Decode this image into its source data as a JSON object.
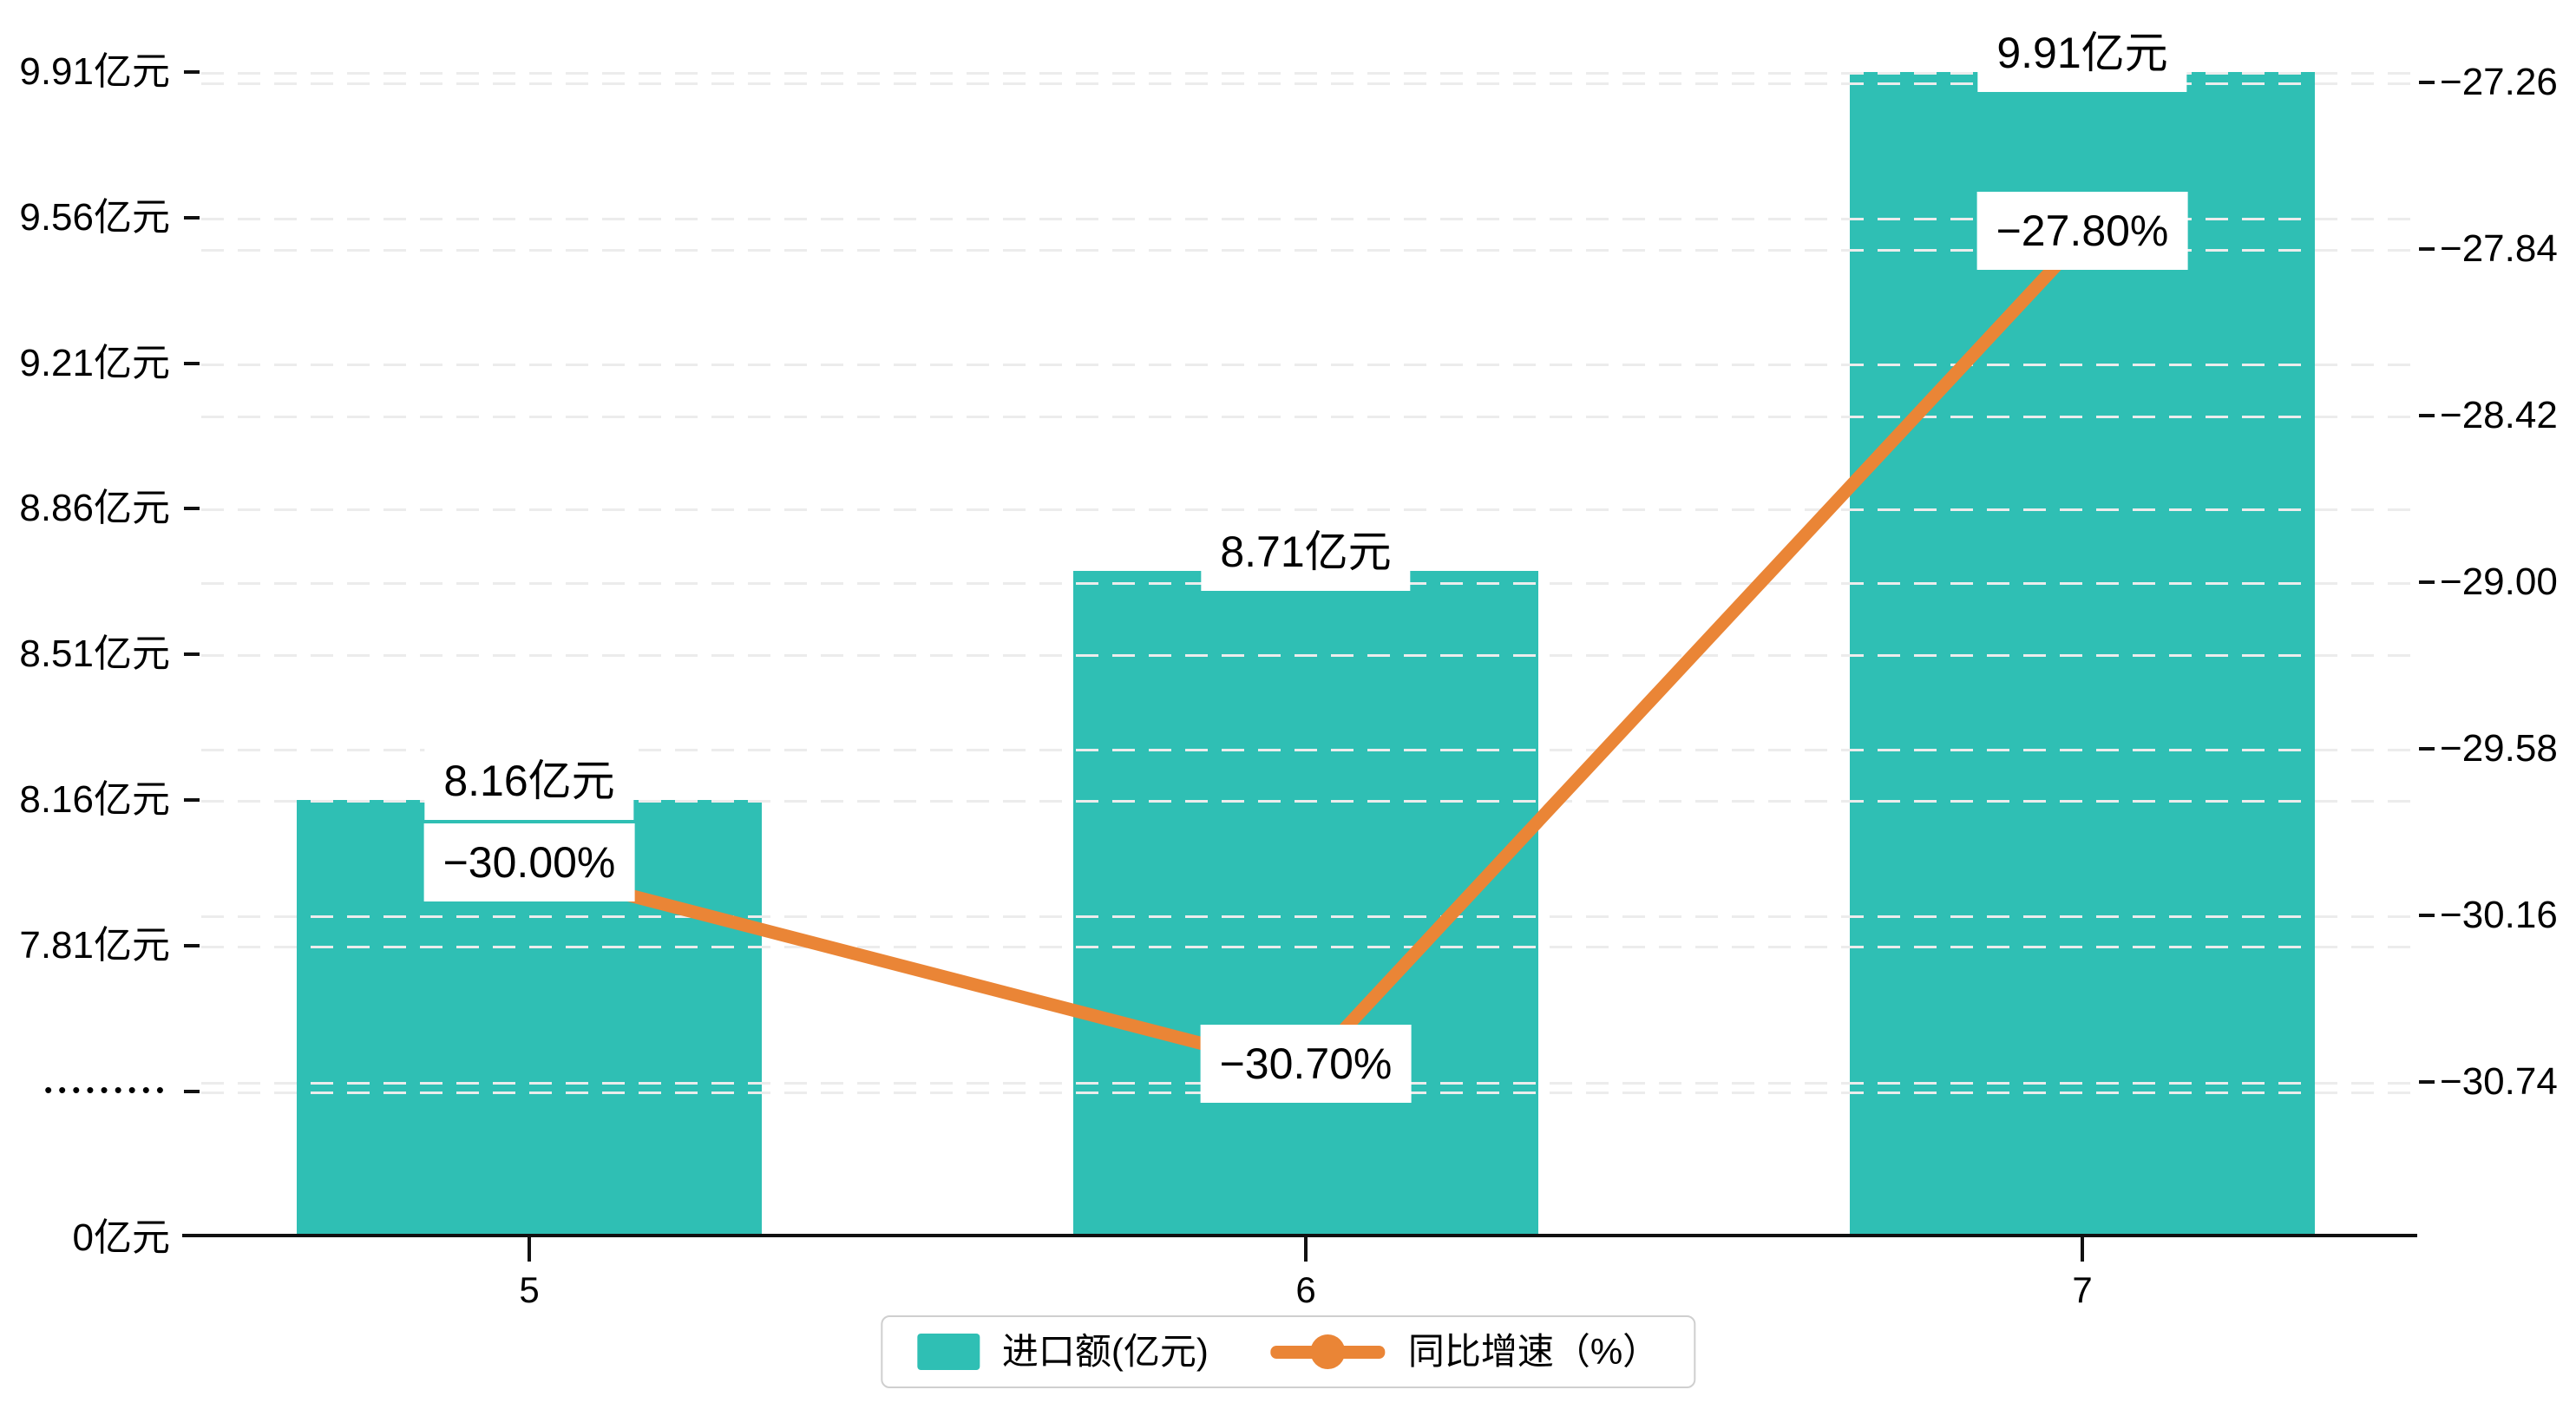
{
  "chart_data": {
    "type": "bar",
    "subtype": "bar-line-combo",
    "categories": [
      "5",
      "6",
      "7"
    ],
    "series": [
      {
        "name": "进口额(亿元)",
        "type": "bar",
        "values": [
          8.16,
          8.71,
          9.91
        ],
        "point_labels": [
          "8.16亿元",
          "8.71亿元",
          "9.91亿元"
        ],
        "color": "#2FBFB4"
      },
      {
        "name": "同比增速（%）",
        "type": "line",
        "values": [
          -30.0,
          -30.7,
          -27.8
        ],
        "point_labels": [
          "−30.00%",
          "−30.70%",
          "−27.80%"
        ],
        "color": "#EA8536"
      }
    ],
    "title": "",
    "xlabel": "",
    "ylabel_left": "亿元",
    "ylabel_right": "%",
    "left_axis": {
      "tick_labels": [
        "9.91亿元",
        "9.56亿元",
        "9.21亿元",
        "8.86亿元",
        "8.51亿元",
        "8.16亿元",
        "7.81亿元"
      ],
      "break_marker": "•••••••••",
      "zero_label": "0亿元",
      "max": 9.91,
      "step": 0.35,
      "axis_break": true
    },
    "right_axis": {
      "tick_labels": [
        "−27.26",
        "−27.84",
        "−28.42",
        "−29.00",
        "−29.58",
        "−30.16",
        "−30.74"
      ],
      "max": -27.26,
      "step": -0.58
    },
    "grid": "light dashed horizontal lines for both y-axes",
    "legend_position": "bottom-center"
  },
  "legend": {
    "items": [
      {
        "label": "进口额(亿元)",
        "marker": "bar-swatch"
      },
      {
        "label": "同比增速（%）",
        "marker": "line-dot"
      }
    ]
  },
  "colors": {
    "bar": "#2FBFB4",
    "line": "#EA8536",
    "axis": "#111111",
    "grid": "#ececec",
    "label_bg": "#ffffff",
    "legend_border": "#cfcfcf",
    "text": "#000000"
  }
}
